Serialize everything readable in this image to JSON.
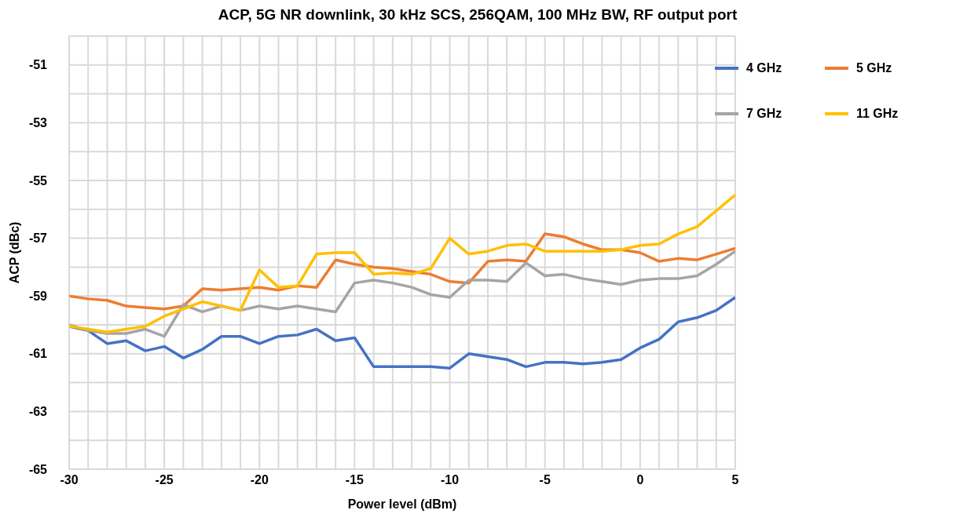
{
  "chart_data": {
    "type": "line",
    "title": "ACP, 5G NR downlink, 30 kHz SCS, 256QAM, 100 MHz BW, RF output port",
    "xlabel": "Power level (dBm)",
    "ylabel": "ACP (dBc)",
    "x": [
      -30,
      -29,
      -28,
      -27,
      -26,
      -25,
      -24,
      -23,
      -22,
      -21,
      -20,
      -19,
      -18,
      -17,
      -16,
      -15,
      -14,
      -13,
      -12,
      -11,
      -10,
      -9,
      -8,
      -7,
      -6,
      -5,
      -4,
      -3,
      -2,
      -1,
      0,
      1,
      2,
      3,
      4,
      5
    ],
    "series": [
      {
        "name": "4 GHz",
        "color": "#4472c4",
        "values": [
          -60.05,
          -60.2,
          -60.65,
          -60.55,
          -60.9,
          -60.75,
          -61.15,
          -60.85,
          -60.4,
          -60.4,
          -60.65,
          -60.4,
          -60.35,
          -60.15,
          -60.55,
          -60.45,
          -61.45,
          -61.45,
          -61.45,
          -61.45,
          -61.5,
          -61.0,
          -61.1,
          -61.2,
          -61.45,
          -61.3,
          -61.3,
          -61.35,
          -61.3,
          -61.2,
          -60.8,
          -60.5,
          -59.9,
          -59.75,
          -59.5,
          -59.05
        ]
      },
      {
        "name": "5 GHz",
        "color": "#ed7d31",
        "values": [
          -59.0,
          -59.1,
          -59.15,
          -59.35,
          -59.4,
          -59.45,
          -59.35,
          -58.75,
          -58.8,
          -58.75,
          -58.7,
          -58.8,
          -58.65,
          -58.7,
          -57.75,
          -57.9,
          -58.0,
          -58.05,
          -58.15,
          -58.25,
          -58.5,
          -58.55,
          -57.8,
          -57.75,
          -57.8,
          -56.85,
          -56.95,
          -57.2,
          -57.4,
          -57.4,
          -57.5,
          -57.8,
          -57.7,
          -57.75,
          -57.55,
          -57.35
        ]
      },
      {
        "name": "7 GHz",
        "color": "#a5a5a5",
        "values": [
          -60.0,
          -60.2,
          -60.3,
          -60.3,
          -60.15,
          -60.4,
          -59.3,
          -59.55,
          -59.35,
          -59.5,
          -59.35,
          -59.45,
          -59.35,
          -59.45,
          -59.55,
          -58.55,
          -58.45,
          -58.55,
          -58.7,
          -58.95,
          -59.05,
          -58.45,
          -58.45,
          -58.5,
          -57.85,
          -58.3,
          -58.25,
          -58.4,
          -58.5,
          -58.6,
          -58.45,
          -58.4,
          -58.4,
          -58.3,
          -57.9,
          -57.45
        ]
      },
      {
        "name": "11 GHz",
        "color": "#ffc000",
        "values": [
          -60.05,
          -60.15,
          -60.25,
          -60.15,
          -60.05,
          -59.7,
          -59.45,
          -59.2,
          -59.35,
          -59.5,
          -58.1,
          -58.7,
          -58.65,
          -57.55,
          -57.5,
          -57.5,
          -58.25,
          -58.2,
          -58.25,
          -58.05,
          -57.0,
          -57.55,
          -57.45,
          -57.25,
          -57.2,
          -57.45,
          -57.45,
          -57.45,
          -57.45,
          -57.4,
          -57.25,
          -57.2,
          -56.85,
          -56.6,
          -56.05,
          -55.5
        ]
      }
    ],
    "xlim": [
      -30,
      5
    ],
    "xticks": [
      -30,
      {
        "value": -29,
        "label": null
      },
      {
        "value": -28,
        "label": null
      },
      {
        "value": -27,
        "label": null
      },
      {
        "value": -26,
        "label": null
      },
      -25,
      {
        "value": -24,
        "label": null
      },
      {
        "value": -23,
        "label": null
      },
      {
        "value": -22,
        "label": null
      },
      {
        "value": -21,
        "label": null
      },
      -20,
      {
        "value": -19,
        "label": null
      },
      {
        "value": -18,
        "label": null
      },
      {
        "value": -17,
        "label": null
      },
      {
        "value": -16,
        "label": null
      },
      -15,
      {
        "value": -14,
        "label": null
      },
      {
        "value": -13,
        "label": null
      },
      {
        "value": -12,
        "label": null
      },
      {
        "value": -11,
        "label": null
      },
      -10,
      {
        "value": -9,
        "label": null
      },
      {
        "value": -8,
        "label": null
      },
      {
        "value": -7,
        "label": null
      },
      {
        "value": -6,
        "label": null
      },
      -5,
      {
        "value": -4,
        "label": null
      },
      {
        "value": -3,
        "label": null
      },
      {
        "value": -2,
        "label": null
      },
      {
        "value": -1,
        "label": null
      },
      0,
      {
        "value": 1,
        "label": null
      },
      {
        "value": 2,
        "label": null
      },
      {
        "value": 3,
        "label": null
      },
      {
        "value": 4,
        "label": null
      },
      5
    ],
    "ylim": [
      -65,
      -50
    ],
    "yticks": [
      -65,
      {
        "value": -64,
        "label": null
      },
      -63,
      {
        "value": -62,
        "label": null
      },
      -61,
      {
        "value": -60,
        "label": null
      },
      -59,
      {
        "value": -58,
        "label": null
      },
      -57,
      {
        "value": -56,
        "label": null
      },
      -55,
      {
        "value": -54,
        "label": null
      },
      -53,
      {
        "value": -52,
        "label": null
      },
      -51,
      {
        "value": -50,
        "label": null
      }
    ],
    "grid": true,
    "legend": "top right",
    "marker": "none",
    "line_style": "solid"
  }
}
